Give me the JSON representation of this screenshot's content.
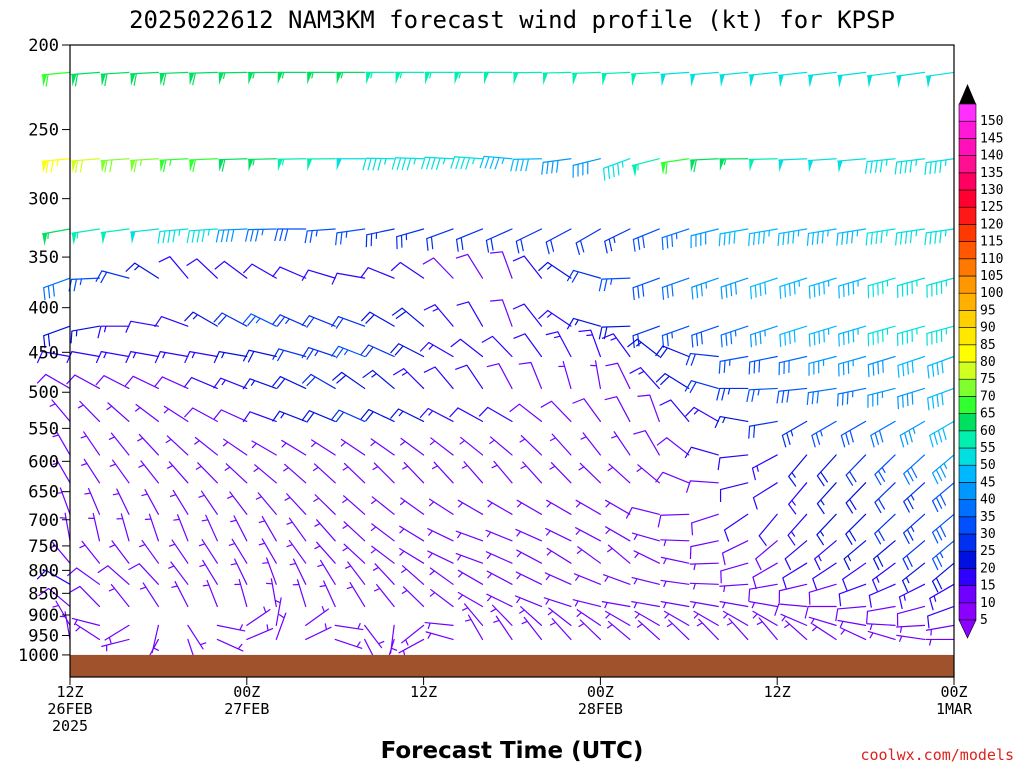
{
  "chart_data": {
    "type": "wind_barb_profile",
    "title": "2025022612 NAM3KM forecast wind profile (kt) for KPSP",
    "xlabel": "Forecast Time (UTC)",
    "credit": "coolwx.com/models",
    "ylabel": "",
    "y_axis": {
      "scale": "log-pressure",
      "range": [
        1000,
        200
      ],
      "ticks": [
        "200",
        "250",
        "300",
        "350",
        "400",
        "450",
        "500",
        "550",
        "600",
        "650",
        "700",
        "750",
        "800",
        "850",
        "900",
        "950",
        "1000"
      ]
    },
    "x_axis": {
      "range_hours": [
        0,
        60
      ],
      "ticks": [
        {
          "hour": 0,
          "label1": "12Z",
          "label2": "26FEB",
          "label3": "2025"
        },
        {
          "hour": 12,
          "label1": "00Z",
          "label2": "27FEB",
          "label3": ""
        },
        {
          "hour": 24,
          "label1": "12Z",
          "label2": "",
          "label3": ""
        },
        {
          "hour": 36,
          "label1": "00Z",
          "label2": "28FEB",
          "label3": ""
        },
        {
          "hour": 48,
          "label1": "12Z",
          "label2": "",
          "label3": ""
        },
        {
          "hour": 60,
          "label1": "00Z",
          "label2": "1MAR",
          "label3": ""
        }
      ]
    },
    "colorbar": {
      "labels": [
        "5",
        "10",
        "15",
        "20",
        "25",
        "30",
        "35",
        "40",
        "45",
        "50",
        "55",
        "60",
        "65",
        "70",
        "75",
        "80",
        "85",
        "90",
        "95",
        "100",
        "105",
        "110",
        "115",
        "120",
        "125",
        "130",
        "135",
        "140",
        "145",
        "150"
      ],
      "colors": [
        "#8b00ff",
        "#7000ff",
        "#3000ff",
        "#0010e0",
        "#0030f0",
        "#0050ff",
        "#0070ff",
        "#0098ff",
        "#00b8ff",
        "#00e0e0",
        "#00f0b0",
        "#00e060",
        "#30ff30",
        "#80ff30",
        "#d0ff20",
        "#ffff00",
        "#ffe800",
        "#ffd000",
        "#ffb000",
        "#ff9800",
        "#ff7800",
        "#ff5800",
        "#ff3800",
        "#ff1818",
        "#ff0030",
        "#ff0060",
        "#ff1090",
        "#ff10b8",
        "#ff18d8",
        "#ff30ff"
      ]
    },
    "ground": {
      "color": "#a0522d",
      "base_pressure_hpa": 1000
    },
    "levels_hpa": [
      215,
      270,
      325,
      370,
      420,
      455,
      495,
      540,
      590,
      635,
      690,
      740,
      785,
      830,
      880,
      925,
      960
    ],
    "level_profiles": [
      {
        "level": 215,
        "knots": [
          [
            0,
            60
          ],
          [
            10,
            58
          ],
          [
            20,
            55
          ],
          [
            30,
            52
          ],
          [
            40,
            50
          ],
          [
            50,
            48
          ],
          [
            60,
            48
          ]
        ],
        "dirs": [
          [
            0,
            265
          ],
          [
            15,
            270
          ],
          [
            30,
            270
          ],
          [
            45,
            265
          ],
          [
            60,
            262
          ]
        ]
      },
      {
        "level": 270,
        "knots": [
          [
            0,
            75
          ],
          [
            10,
            60
          ],
          [
            20,
            48
          ],
          [
            28,
            45
          ],
          [
            36,
            38
          ],
          [
            42,
            62
          ],
          [
            50,
            48
          ],
          [
            60,
            47
          ]
        ],
        "dirs": [
          [
            0,
            265
          ],
          [
            20,
            270
          ],
          [
            30,
            275
          ],
          [
            38,
            250
          ],
          [
            45,
            270
          ],
          [
            60,
            262
          ]
        ]
      },
      {
        "level": 325,
        "knots": [
          [
            0,
            55
          ],
          [
            10,
            45
          ],
          [
            16,
            28
          ],
          [
            26,
            22
          ],
          [
            36,
            20
          ],
          [
            46,
            42
          ],
          [
            60,
            47
          ]
        ],
        "dirs": [
          [
            0,
            260
          ],
          [
            16,
            270
          ],
          [
            26,
            250
          ],
          [
            36,
            240
          ],
          [
            46,
            260
          ],
          [
            60,
            262
          ]
        ]
      },
      {
        "level": 370,
        "knots": [
          [
            0,
            30
          ],
          [
            8,
            10
          ],
          [
            20,
            12
          ],
          [
            30,
            8
          ],
          [
            38,
            25
          ],
          [
            48,
            42
          ],
          [
            60,
            47
          ]
        ],
        "dirs": [
          [
            0,
            250
          ],
          [
            8,
            320
          ],
          [
            20,
            280
          ],
          [
            30,
            340
          ],
          [
            40,
            250
          ],
          [
            60,
            255
          ]
        ]
      },
      {
        "level": 420,
        "knots": [
          [
            0,
            18
          ],
          [
            8,
            10
          ],
          [
            14,
            25
          ],
          [
            24,
            18
          ],
          [
            30,
            8
          ],
          [
            40,
            22
          ],
          [
            52,
            44
          ],
          [
            60,
            47
          ]
        ],
        "dirs": [
          [
            0,
            250
          ],
          [
            10,
            300
          ],
          [
            20,
            290
          ],
          [
            30,
            340
          ],
          [
            40,
            250
          ],
          [
            60,
            255
          ]
        ]
      },
      {
        "level": 455,
        "knots": [
          [
            0,
            12
          ],
          [
            10,
            14
          ],
          [
            20,
            25
          ],
          [
            28,
            10
          ],
          [
            40,
            15
          ],
          [
            52,
            35
          ],
          [
            60,
            42
          ]
        ],
        "dirs": [
          [
            0,
            280
          ],
          [
            12,
            280
          ],
          [
            26,
            300
          ],
          [
            36,
            340
          ],
          [
            46,
            260
          ],
          [
            60,
            250
          ]
        ]
      },
      {
        "level": 495,
        "knots": [
          [
            0,
            8
          ],
          [
            10,
            10
          ],
          [
            18,
            20
          ],
          [
            26,
            12
          ],
          [
            36,
            5
          ],
          [
            44,
            22
          ],
          [
            52,
            32
          ],
          [
            60,
            40
          ]
        ],
        "dirs": [
          [
            0,
            300
          ],
          [
            14,
            290
          ],
          [
            26,
            320
          ],
          [
            36,
            350
          ],
          [
            46,
            270
          ],
          [
            60,
            250
          ]
        ]
      },
      {
        "level": 540,
        "knots": [
          [
            0,
            6
          ],
          [
            12,
            8
          ],
          [
            20,
            22
          ],
          [
            30,
            10
          ],
          [
            40,
            8
          ],
          [
            48,
            20
          ],
          [
            54,
            28
          ],
          [
            60,
            40
          ]
        ],
        "dirs": [
          [
            0,
            320
          ],
          [
            14,
            290
          ],
          [
            30,
            300
          ],
          [
            40,
            340
          ],
          [
            50,
            240
          ],
          [
            60,
            240
          ]
        ]
      },
      {
        "level": 590,
        "knots": [
          [
            0,
            5
          ],
          [
            12,
            6
          ],
          [
            24,
            6
          ],
          [
            36,
            5
          ],
          [
            46,
            12
          ],
          [
            54,
            22
          ],
          [
            60,
            35
          ]
        ],
        "dirs": [
          [
            0,
            330
          ],
          [
            14,
            300
          ],
          [
            30,
            310
          ],
          [
            40,
            330
          ],
          [
            50,
            220
          ],
          [
            60,
            230
          ]
        ]
      },
      {
        "level": 635,
        "knots": [
          [
            0,
            5
          ],
          [
            12,
            5
          ],
          [
            24,
            5
          ],
          [
            36,
            5
          ],
          [
            46,
            10
          ],
          [
            54,
            18
          ],
          [
            60,
            28
          ]
        ],
        "dirs": [
          [
            0,
            330
          ],
          [
            14,
            310
          ],
          [
            30,
            320
          ],
          [
            40,
            310
          ],
          [
            50,
            220
          ],
          [
            60,
            230
          ]
        ]
      },
      {
        "level": 690,
        "knots": [
          [
            0,
            5
          ],
          [
            14,
            5
          ],
          [
            26,
            6
          ],
          [
            36,
            6
          ],
          [
            46,
            10
          ],
          [
            54,
            18
          ],
          [
            60,
            28
          ]
        ],
        "dirs": [
          [
            0,
            340
          ],
          [
            14,
            320
          ],
          [
            28,
            300
          ],
          [
            38,
            300
          ],
          [
            48,
            220
          ],
          [
            60,
            230
          ]
        ]
      },
      {
        "level": 740,
        "knots": [
          [
            0,
            5
          ],
          [
            14,
            5
          ],
          [
            26,
            5
          ],
          [
            36,
            6
          ],
          [
            46,
            8
          ],
          [
            54,
            15
          ],
          [
            60,
            25
          ]
        ],
        "dirs": [
          [
            0,
            350
          ],
          [
            14,
            330
          ],
          [
            28,
            290
          ],
          [
            38,
            300
          ],
          [
            48,
            230
          ],
          [
            60,
            230
          ]
        ]
      },
      {
        "level": 785,
        "knots": [
          [
            0,
            6
          ],
          [
            14,
            5
          ],
          [
            26,
            5
          ],
          [
            36,
            5
          ],
          [
            46,
            8
          ],
          [
            54,
            12
          ],
          [
            60,
            18
          ]
        ],
        "dirs": [
          [
            0,
            320
          ],
          [
            14,
            330
          ],
          [
            28,
            290
          ],
          [
            38,
            310
          ],
          [
            48,
            240
          ],
          [
            60,
            230
          ]
        ]
      },
      {
        "level": 830,
        "knots": [
          [
            0,
            10
          ],
          [
            14,
            5
          ],
          [
            26,
            5
          ],
          [
            36,
            5
          ],
          [
            46,
            7
          ],
          [
            54,
            10
          ],
          [
            60,
            14
          ]
        ],
        "dirs": [
          [
            0,
            300
          ],
          [
            14,
            340
          ],
          [
            28,
            300
          ],
          [
            38,
            290
          ],
          [
            48,
            260
          ],
          [
            60,
            240
          ]
        ]
      },
      {
        "level": 880,
        "knots": [
          [
            0,
            8
          ],
          [
            14,
            5
          ],
          [
            26,
            5
          ],
          [
            36,
            6
          ],
          [
            46,
            7
          ],
          [
            54,
            8
          ],
          [
            60,
            10
          ]
        ],
        "dirs": [
          [
            0,
            310
          ],
          [
            14,
            350
          ],
          [
            28,
            300
          ],
          [
            38,
            280
          ],
          [
            48,
            280
          ],
          [
            60,
            250
          ]
        ]
      },
      {
        "level": 925,
        "knots": [
          [
            0,
            5
          ],
          [
            14,
            5
          ],
          [
            26,
            5
          ],
          [
            36,
            5
          ],
          [
            46,
            6
          ],
          [
            54,
            6
          ],
          [
            60,
            6
          ]
        ],
        "dirs": [
          [
            0,
            330
          ],
          [
            14,
            10
          ],
          [
            28,
            320
          ],
          [
            38,
            300
          ],
          [
            48,
            300
          ],
          [
            60,
            260
          ]
        ]
      },
      {
        "level": 960,
        "knots": [
          [
            0,
            5
          ],
          [
            14,
            5
          ],
          [
            26,
            5
          ],
          [
            36,
            5
          ],
          [
            46,
            5
          ],
          [
            54,
            6
          ],
          [
            60,
            6
          ]
        ],
        "dirs": [
          [
            0,
            350
          ],
          [
            14,
            20
          ],
          [
            28,
            330
          ],
          [
            38,
            310
          ],
          [
            48,
            320
          ],
          [
            60,
            270
          ]
        ]
      }
    ],
    "time_step_hours": 2
  }
}
